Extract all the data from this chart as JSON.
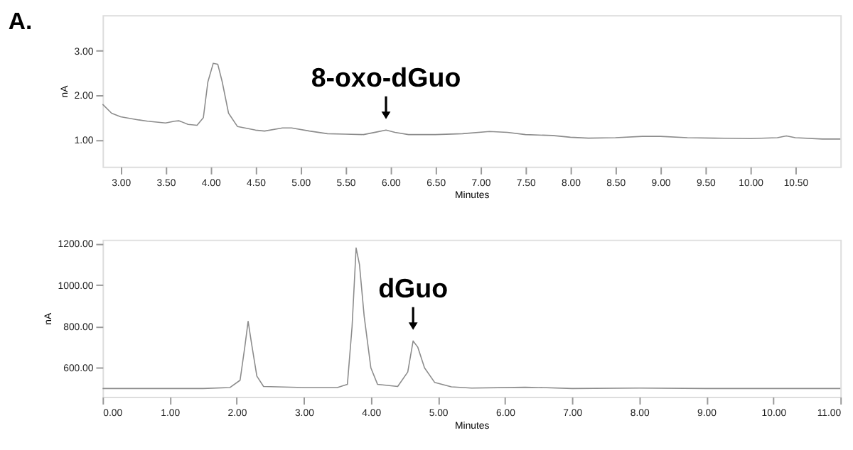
{
  "chart_data": [
    {
      "type": "line",
      "xlabel": "Minutes",
      "ylabel": "nA",
      "grid": false,
      "legend": false,
      "marker": "none",
      "line_style": "solid",
      "xlim": [
        2.8,
        11.0
      ],
      "ylim": [
        0.4,
        3.8
      ],
      "xticks": [
        {
          "value": 3,
          "label": "3.00"
        },
        {
          "value": 3.5,
          "label": "3.50"
        },
        {
          "value": 4,
          "label": "4.00"
        },
        {
          "value": 4.5,
          "label": "4.50"
        },
        {
          "value": 5,
          "label": "5.00"
        },
        {
          "value": 5.5,
          "label": "5.50"
        },
        {
          "value": 6,
          "label": "6.00"
        },
        {
          "value": 6.5,
          "label": "6.50"
        },
        {
          "value": 7,
          "label": "7.00"
        },
        {
          "value": 7.5,
          "label": "7.50"
        },
        {
          "value": 8,
          "label": "8.00"
        },
        {
          "value": 8.5,
          "label": "8.50"
        },
        {
          "value": 9,
          "label": "9.00"
        },
        {
          "value": 9.5,
          "label": "9.50"
        },
        {
          "value": 10,
          "label": "10.00"
        },
        {
          "value": 10.5,
          "label": "10.50"
        }
      ],
      "yticks": [
        {
          "value": 1,
          "label": "1.00"
        },
        {
          "value": 2,
          "label": "2.00"
        },
        {
          "value": 3,
          "label": "3.00"
        }
      ],
      "x": [
        2.8,
        2.9,
        3.0,
        3.2,
        3.3,
        3.5,
        3.6,
        3.65,
        3.75,
        3.85,
        3.92,
        3.97,
        4.03,
        4.08,
        4.13,
        4.2,
        4.3,
        4.5,
        4.6,
        4.8,
        4.9,
        5.1,
        5.3,
        5.5,
        5.7,
        5.85,
        5.95,
        6.05,
        6.2,
        6.5,
        6.8,
        7.1,
        7.3,
        7.5,
        7.8,
        8.0,
        8.2,
        8.5,
        8.8,
        9.0,
        9.3,
        9.6,
        10.0,
        10.3,
        10.4,
        10.5,
        10.8,
        11.0
      ],
      "series": [
        {
          "color": "#8c8c8c",
          "values": [
            1.8,
            1.6,
            1.52,
            1.45,
            1.42,
            1.38,
            1.42,
            1.43,
            1.35,
            1.33,
            1.5,
            2.3,
            2.72,
            2.7,
            2.3,
            1.6,
            1.3,
            1.22,
            1.2,
            1.27,
            1.27,
            1.2,
            1.14,
            1.13,
            1.12,
            1.18,
            1.22,
            1.17,
            1.12,
            1.12,
            1.14,
            1.19,
            1.17,
            1.12,
            1.1,
            1.06,
            1.04,
            1.05,
            1.08,
            1.08,
            1.05,
            1.04,
            1.03,
            1.05,
            1.09,
            1.05,
            1.02,
            1.02
          ]
        }
      ],
      "annotations": [
        "A.",
        {
          "text": "8-oxo-dGuo",
          "x": 5.95,
          "y": 1.22
        }
      ]
    },
    {
      "type": "line",
      "xlabel": "Minutes",
      "ylabel": "nA",
      "grid": false,
      "legend": false,
      "marker": "none",
      "line_style": "solid",
      "xlim": [
        0,
        11
      ],
      "ylim": [
        460,
        1220
      ],
      "xticks": [
        {
          "value": 0,
          "label": "0.00"
        },
        {
          "value": 1,
          "label": "1.00"
        },
        {
          "value": 2,
          "label": "2.00"
        },
        {
          "value": 3,
          "label": "3.00"
        },
        {
          "value": 4,
          "label": "4.00"
        },
        {
          "value": 5,
          "label": "5.00"
        },
        {
          "value": 6,
          "label": "6.00"
        },
        {
          "value": 7,
          "label": "7.00"
        },
        {
          "value": 8,
          "label": "8.00"
        },
        {
          "value": 9,
          "label": "9.00"
        },
        {
          "value": 10,
          "label": "10.00"
        },
        {
          "value": 11,
          "label": "11.00"
        }
      ],
      "yticks": [
        {
          "value": 600,
          "label": "600.00"
        },
        {
          "value": 800,
          "label": "800.00"
        },
        {
          "value": 1000,
          "label": "1000.00"
        },
        {
          "value": 1200,
          "label": "1200.00"
        }
      ],
      "x": [
        0,
        0.8,
        1.5,
        1.9,
        2.05,
        2.12,
        2.17,
        2.22,
        2.3,
        2.4,
        3.0,
        3.5,
        3.65,
        3.72,
        3.78,
        3.83,
        3.9,
        4.0,
        4.1,
        4.4,
        4.55,
        4.63,
        4.7,
        4.8,
        4.95,
        5.2,
        5.5,
        6.3,
        6.5,
        7,
        8,
        9,
        10,
        11
      ],
      "series": [
        {
          "color": "#8c8c8c",
          "values": [
            500,
            500,
            500,
            505,
            540,
            700,
            825,
            720,
            560,
            510,
            505,
            505,
            520,
            800,
            1180,
            1100,
            850,
            600,
            520,
            510,
            580,
            730,
            700,
            600,
            530,
            508,
            502,
            506,
            505,
            500,
            502,
            500,
            500,
            500
          ]
        }
      ],
      "annotations": [
        {
          "text": "dGuo",
          "x": 4.63,
          "y": 730
        }
      ]
    }
  ]
}
